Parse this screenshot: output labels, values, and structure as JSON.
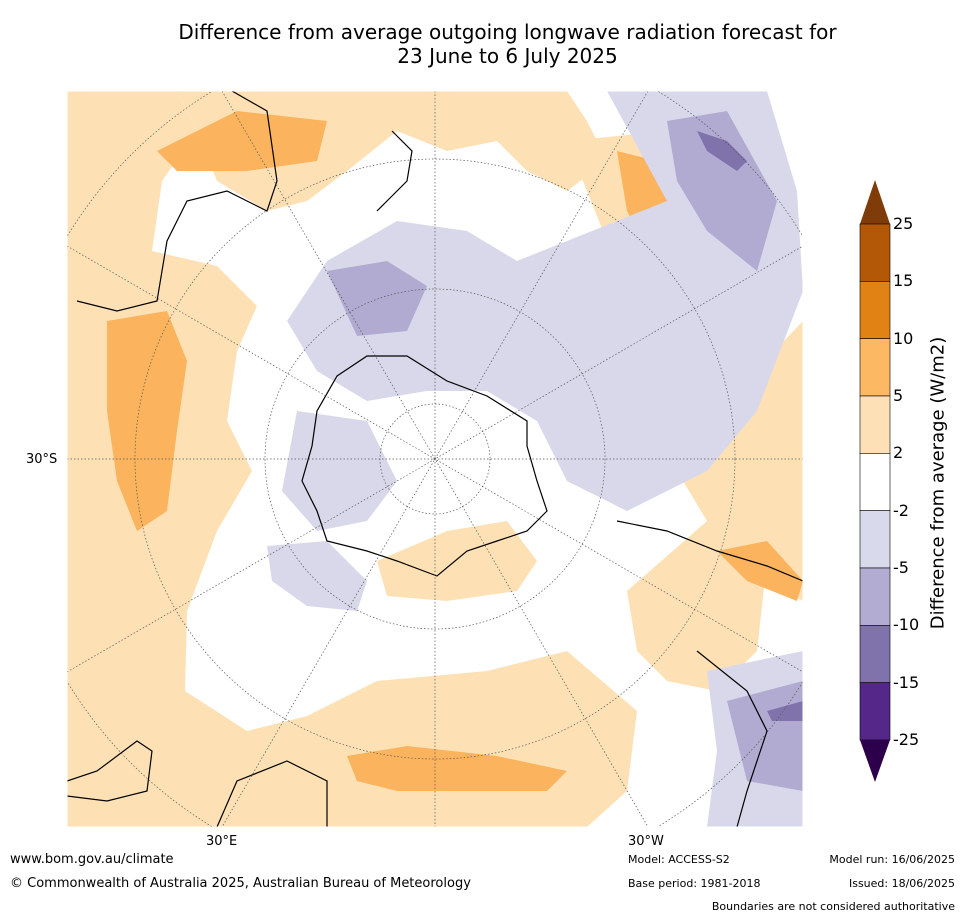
{
  "title_line1": "Difference from average outgoing longwave radiation forecast for",
  "title_line2": "23 June to 6 July 2025",
  "map": {
    "lat_label": "30°S",
    "lon_labels": [
      "30°E",
      "30°W"
    ],
    "colors": {
      "land_outline": "#000000",
      "grid": "#555555",
      "pos_2_5": "#fde1b5",
      "pos_5_10": "#fbb35d",
      "neg_2_5": "#d8d8ea",
      "neg_5_10": "#b1abd1",
      "neg_10_15": "#8073ac"
    }
  },
  "colorbar": {
    "title": "Difference from average (W/m2)",
    "ticks": [
      "25",
      "15",
      "10",
      "5",
      "2",
      "-2",
      "-5",
      "-10",
      "-15",
      "-25"
    ],
    "colors": [
      "#7f3b08",
      "#b35806",
      "#e08214",
      "#fdb863",
      "#fee0b6",
      "#ffffff",
      "#d8daeb",
      "#b2abd2",
      "#8073ac",
      "#542788",
      "#2d004b"
    ]
  },
  "footer": {
    "website": "www.bom.gov.au/climate",
    "copyright": "© Commonwealth of Australia 2025, Australian Bureau of Meteorology",
    "model": "Model: ACCESS-S2",
    "model_run": "Model run: 16/06/2025",
    "base_period": "Base period: 1981-2018",
    "issued": "Issued: 18/06/2025",
    "disclaimer": "Boundaries are not considered authoritative"
  }
}
